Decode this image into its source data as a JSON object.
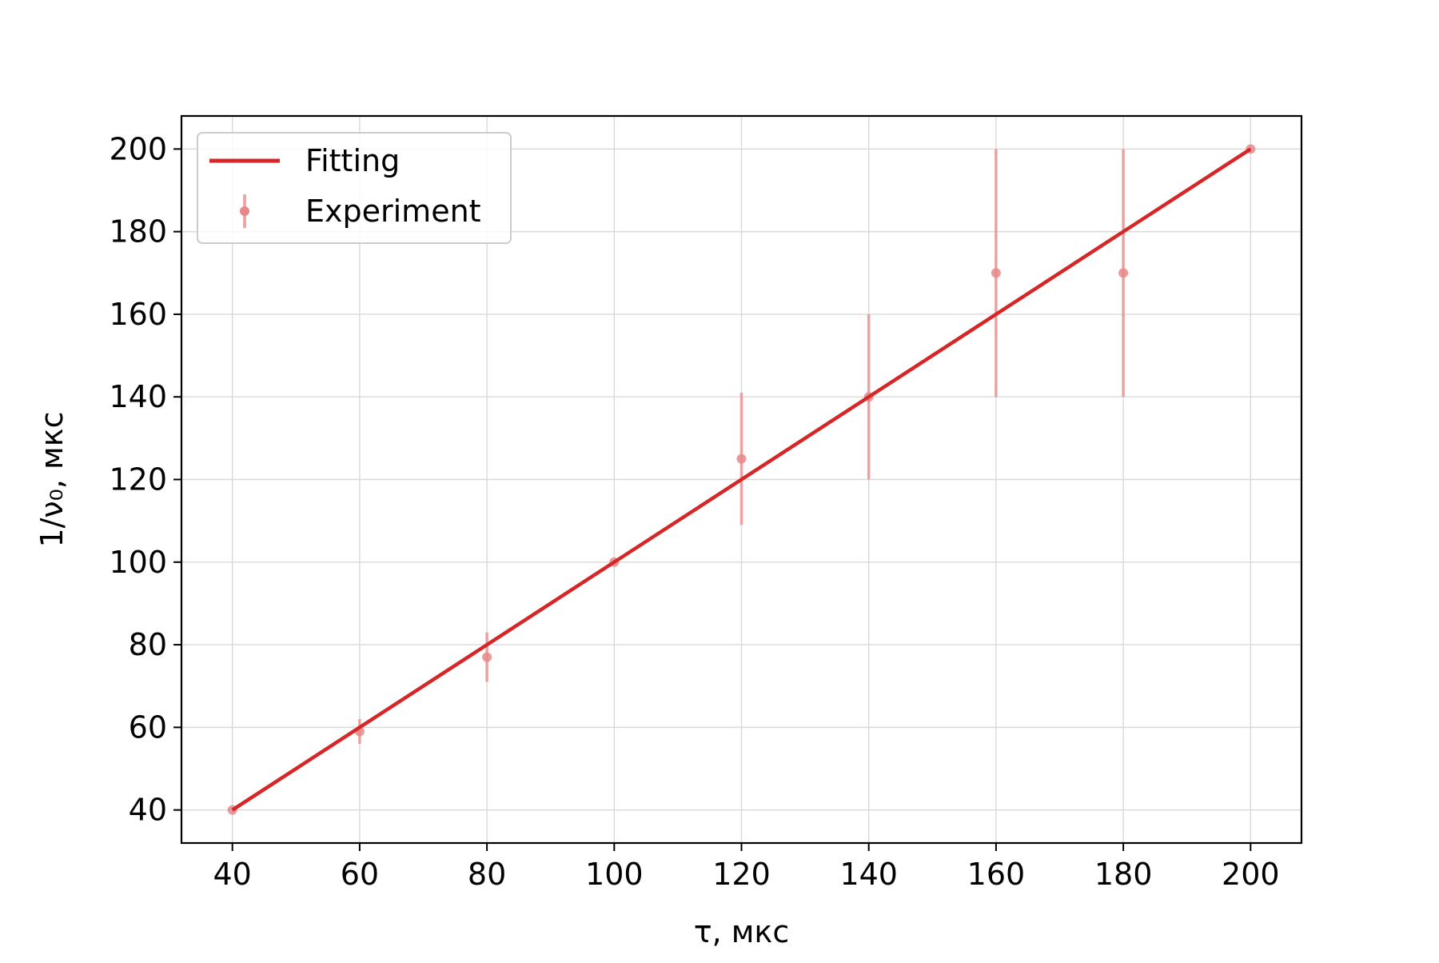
{
  "chart_data": {
    "type": "scatter",
    "title": "",
    "xlabel": "τ, мкс",
    "ylabel": "1/ν₀, мкс",
    "xlim": [
      32,
      208
    ],
    "ylim": [
      32,
      208
    ],
    "x_ticks": [
      40,
      60,
      80,
      100,
      120,
      140,
      160,
      180,
      200
    ],
    "y_ticks": [
      40,
      60,
      80,
      100,
      120,
      140,
      160,
      180,
      200
    ],
    "grid": true,
    "legend_position": "top-left",
    "series": [
      {
        "name": "Fitting",
        "kind": "line",
        "color": "#d62728",
        "x": [
          40,
          200
        ],
        "y": [
          40,
          200
        ]
      },
      {
        "name": "Experiment",
        "kind": "errorbar",
        "color": "#e8888a",
        "x": [
          40,
          60,
          80,
          100,
          120,
          140,
          160,
          180,
          200
        ],
        "y": [
          40,
          59,
          77,
          100,
          125,
          140,
          170,
          170,
          200
        ],
        "yerr": [
          0,
          3,
          6,
          0,
          16,
          20,
          30,
          30,
          0
        ]
      }
    ]
  }
}
